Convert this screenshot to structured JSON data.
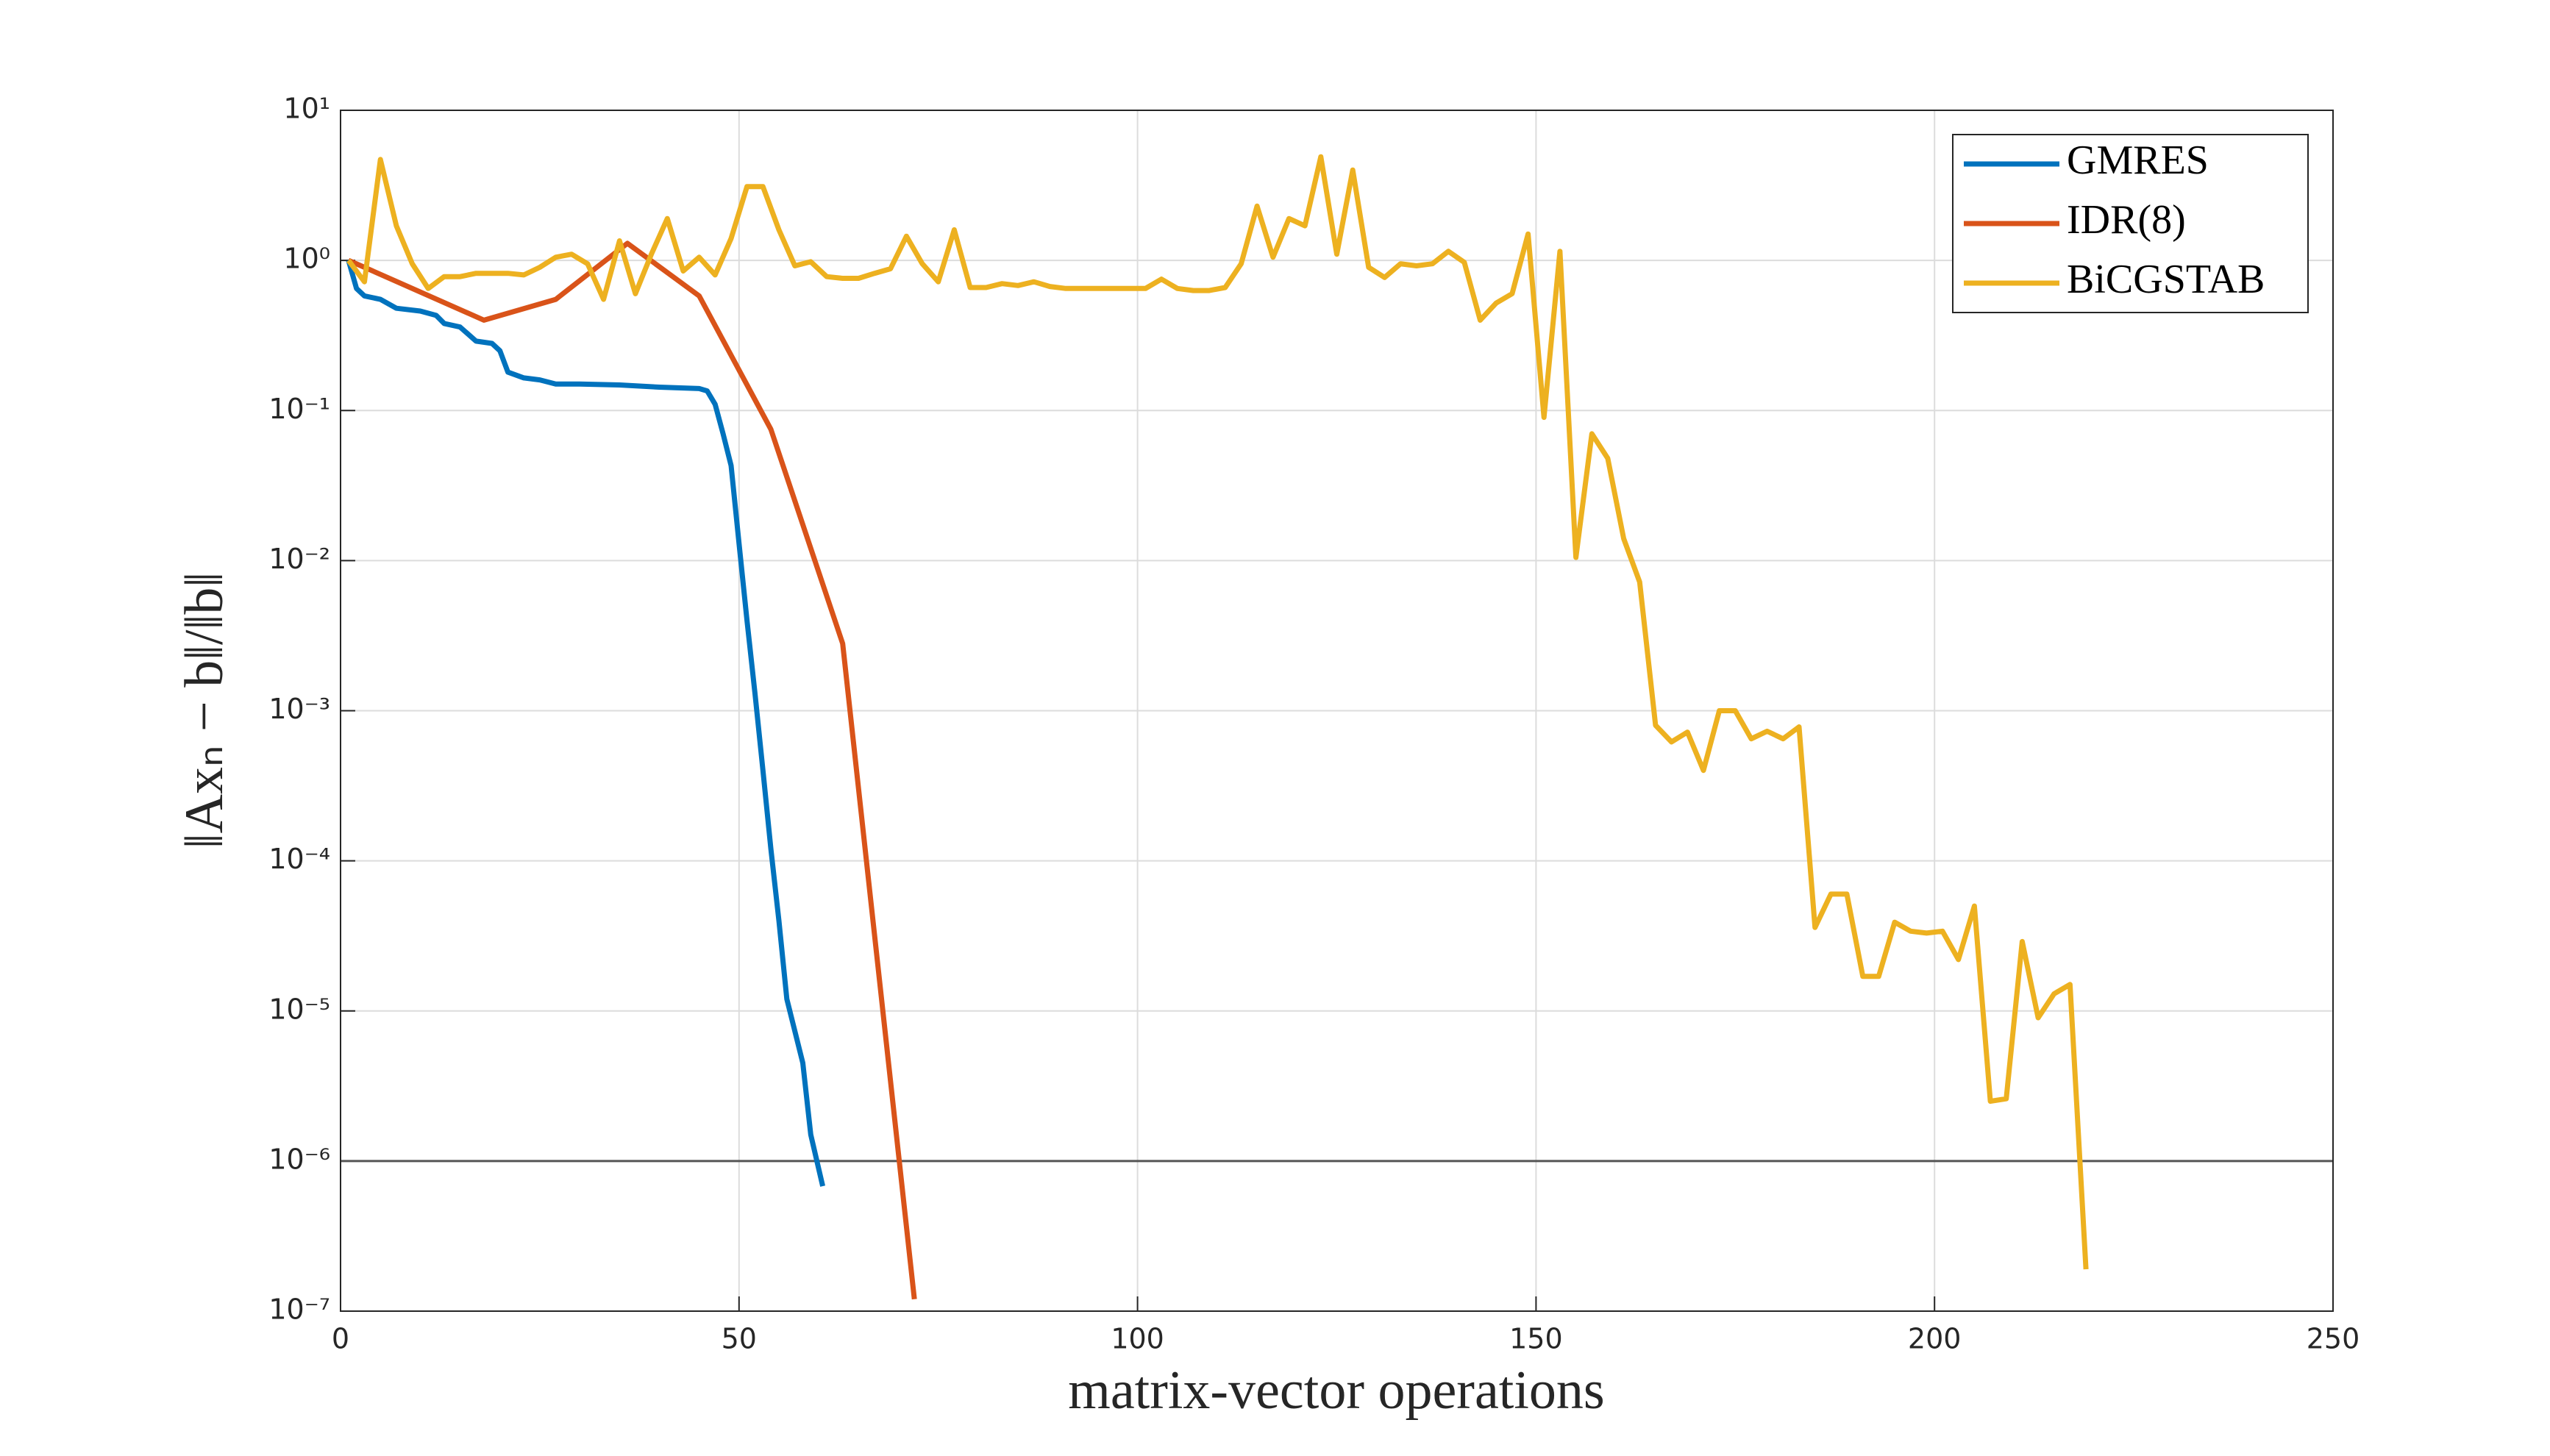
{
  "chart_data": {
    "type": "line",
    "log_y": true,
    "grid": true,
    "legend": "top-right",
    "xlabel": "matrix-vector operations",
    "ylabel": "‖Axₙ − b‖/‖b‖",
    "xlim": [
      0,
      250
    ],
    "xticks": [
      0,
      50,
      100,
      150,
      200,
      250
    ],
    "ylim": [
      1e-07,
      10
    ],
    "yticks": [
      {
        "value": 1e-07,
        "label": "10⁻⁷"
      },
      {
        "value": 1e-06,
        "label": "10⁻⁶"
      },
      {
        "value": 1e-05,
        "label": "10⁻⁵"
      },
      {
        "value": 0.0001,
        "label": "10⁻⁴"
      },
      {
        "value": 0.001,
        "label": "10⁻³"
      },
      {
        "value": 0.01,
        "label": "10⁻²"
      },
      {
        "value": 0.1,
        "label": "10⁻¹"
      },
      {
        "value": 1,
        "label": "10⁰"
      },
      {
        "value": 10,
        "label": "10¹"
      }
    ],
    "hline": 1e-06,
    "series": [
      {
        "name": "GMRES",
        "color": "#0072bd",
        "x": [
          1,
          2,
          3,
          5,
          7,
          10,
          12,
          13,
          15,
          17,
          19,
          20,
          21,
          23,
          25,
          27,
          30,
          35,
          40,
          45,
          46,
          47,
          48,
          49,
          50,
          51,
          52,
          53,
          54,
          55,
          56,
          58,
          59,
          60.5
        ],
        "values": [
          1.0,
          0.65,
          0.58,
          0.55,
          0.48,
          0.46,
          0.43,
          0.38,
          0.36,
          0.29,
          0.28,
          0.25,
          0.18,
          0.165,
          0.16,
          0.15,
          0.15,
          0.148,
          0.143,
          0.14,
          0.135,
          0.11,
          0.07,
          0.043,
          0.013,
          0.004,
          0.0013,
          0.0004,
          0.00012,
          4e-05,
          1.2e-05,
          4.5e-06,
          1.5e-06,
          6.8e-07
        ]
      },
      {
        "name": "IDR(8)",
        "color": "#d95319",
        "x": [
          1,
          3,
          18,
          27,
          36,
          45,
          54,
          63,
          72
        ],
        "values": [
          1.0,
          0.9,
          0.4,
          0.55,
          1.3,
          0.58,
          0.075,
          0.0028,
          1.2e-07
        ]
      },
      {
        "name": "BiCGSTAB",
        "color": "#edb120",
        "x": [
          1,
          3,
          5,
          7,
          9,
          11,
          13,
          15,
          17,
          19,
          21,
          23,
          25,
          27,
          29,
          31,
          33,
          35,
          37,
          39,
          41,
          43,
          45,
          47,
          49,
          51,
          53,
          55,
          57,
          59,
          61,
          63,
          65,
          67,
          69,
          71,
          73,
          75,
          77,
          79,
          81,
          83,
          85,
          87,
          89,
          91,
          101,
          103,
          105,
          107,
          109,
          111,
          113,
          115,
          117,
          119,
          121,
          123,
          125,
          127,
          129,
          131,
          133,
          135,
          137,
          139,
          141,
          143,
          145,
          147,
          149,
          151,
          153,
          155,
          157,
          159,
          161,
          163,
          165,
          167,
          169,
          171,
          173,
          175,
          177,
          179,
          181,
          183,
          185,
          187,
          189,
          191,
          193,
          195,
          197,
          199,
          201,
          203,
          205,
          207,
          209,
          211,
          213,
          215,
          217,
          219
        ],
        "values": [
          1.0,
          0.72,
          4.7,
          1.7,
          0.95,
          0.65,
          0.78,
          0.78,
          0.82,
          0.82,
          0.82,
          0.8,
          0.9,
          1.05,
          1.1,
          0.95,
          0.55,
          1.35,
          0.6,
          1.1,
          1.9,
          0.85,
          1.05,
          0.8,
          1.4,
          3.1,
          3.1,
          1.6,
          0.92,
          0.98,
          0.78,
          0.76,
          0.76,
          0.82,
          0.88,
          1.45,
          0.95,
          0.72,
          1.6,
          0.66,
          0.66,
          0.7,
          0.68,
          0.72,
          0.67,
          0.65,
          0.65,
          0.75,
          0.65,
          0.63,
          0.63,
          0.66,
          0.95,
          2.3,
          1.05,
          1.9,
          1.7,
          4.9,
          1.1,
          4.0,
          0.9,
          0.77,
          0.95,
          0.92,
          0.95,
          1.15,
          0.97,
          0.4,
          0.52,
          0.6,
          1.5,
          0.09,
          1.15,
          0.0105,
          0.07,
          0.048,
          0.014,
          0.0072,
          0.0008,
          0.00062,
          0.00072,
          0.0004,
          0.001,
          0.001,
          0.00065,
          0.00073,
          0.00065,
          0.00078,
          3.6e-05,
          6e-05,
          6e-05,
          1.7e-05,
          1.7e-05,
          3.9e-05,
          3.4e-05,
          3.3e-05,
          3.4e-05,
          2.2e-05,
          5e-05,
          2.5e-06,
          2.6e-06,
          2.9e-05,
          9e-06,
          1.3e-05,
          1.5e-05,
          1.9e-07
        ]
      }
    ]
  }
}
